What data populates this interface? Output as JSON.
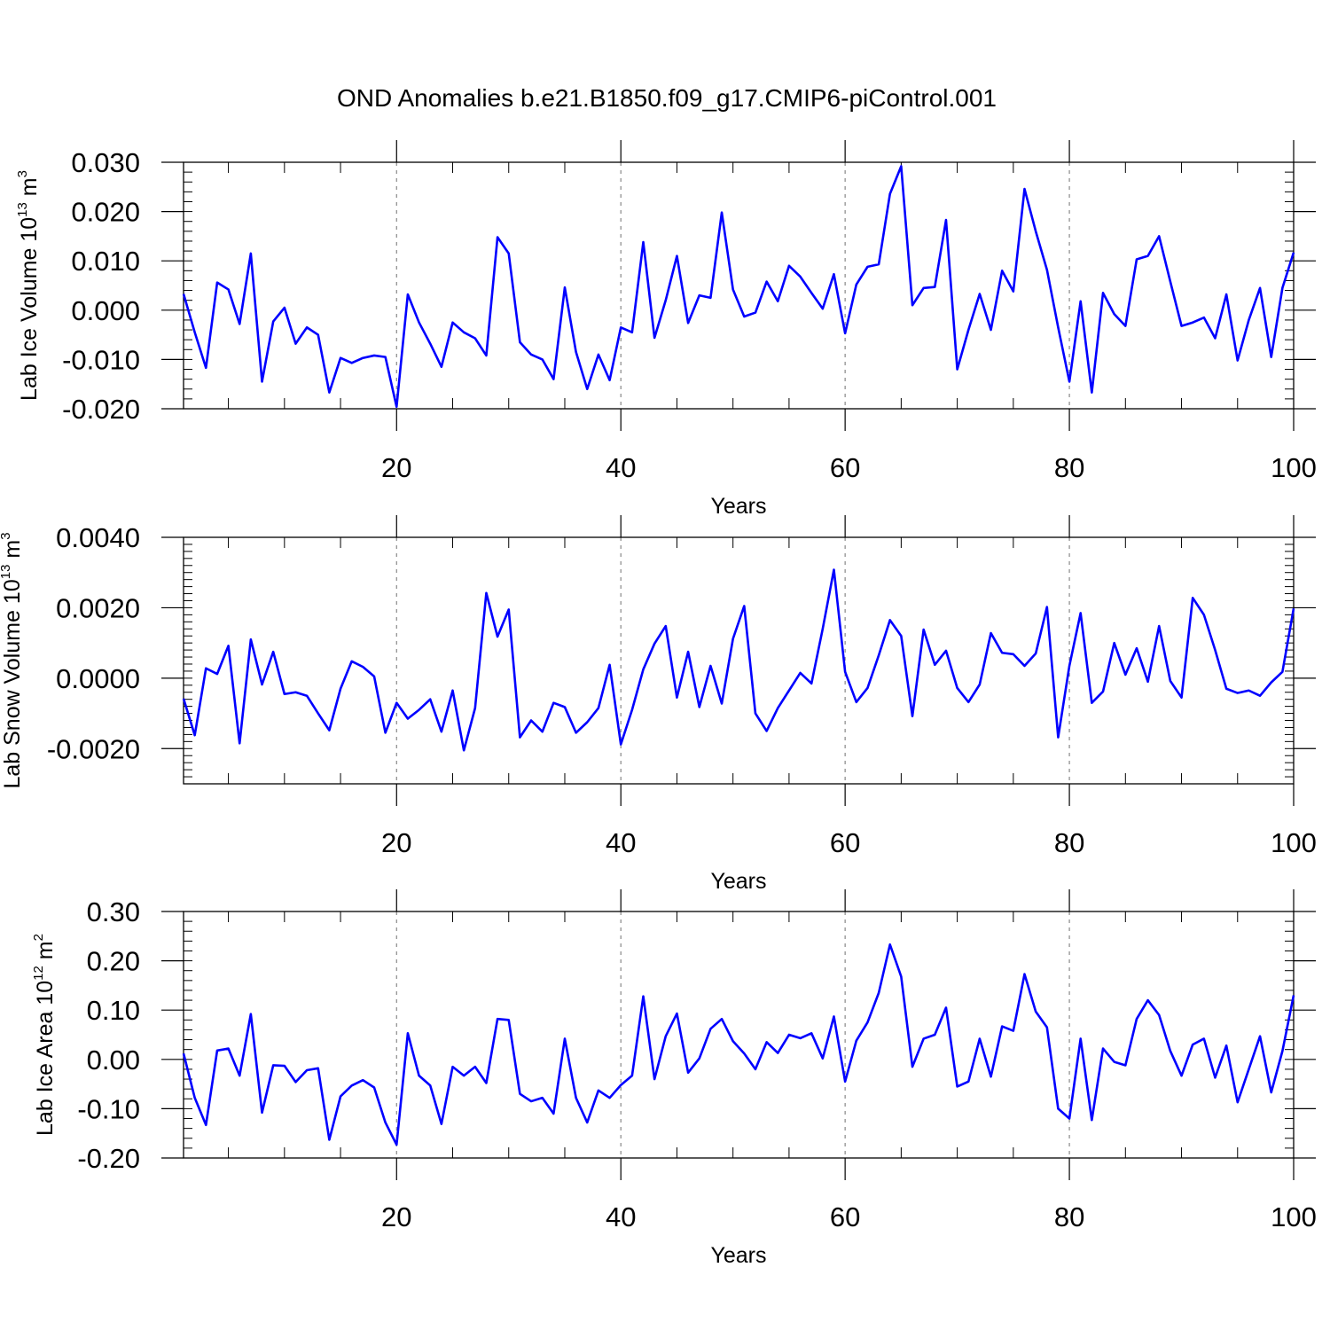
{
  "title": "OND Anomalies b.e21.B1850.f09_g17.CMIP6-piControl.001",
  "colors": {
    "line": "#0000ff",
    "axis": "#000000",
    "grid": "#888888",
    "background": "#ffffff"
  },
  "chart_data": [
    {
      "type": "line",
      "ylabel": {
        "prefix": "Lab Ice Volume 10",
        "exp": "13",
        "unit": " m",
        "unit_exp": "3"
      },
      "xlabel": "Years",
      "xlim": [
        1,
        100
      ],
      "ylim": [
        -0.02,
        0.03
      ],
      "xticks": [
        20,
        40,
        60,
        80,
        100
      ],
      "xtick_labels": [
        "20",
        "40",
        "60",
        "80",
        "100"
      ],
      "yticks": [
        -0.02,
        -0.01,
        0.0,
        0.01,
        0.02,
        0.03
      ],
      "ytick_labels": [
        "-0.020",
        "-0.010",
        "0.000",
        "0.010",
        "0.020",
        "0.030"
      ],
      "yminor_step": 0.002,
      "grid": "dashed vertical at 20, 40, 60, 80",
      "series": [
        {
          "name": "Lab Ice Volume",
          "x_start": 1,
          "values": [
            0.0033,
            -0.0045,
            -0.0117,
            0.0056,
            0.0042,
            -0.0028,
            0.0115,
            -0.0145,
            -0.0023,
            0.0005,
            -0.0068,
            -0.0035,
            -0.005,
            -0.0167,
            -0.0097,
            -0.0107,
            -0.0097,
            -0.0092,
            -0.0095,
            -0.0196,
            0.0032,
            -0.0025,
            -0.0068,
            -0.0115,
            -0.0025,
            -0.0045,
            -0.0057,
            -0.0092,
            0.0148,
            0.0115,
            -0.0065,
            -0.009,
            -0.01,
            -0.014,
            0.0046,
            -0.0085,
            -0.016,
            -0.009,
            -0.0142,
            -0.0035,
            -0.0045,
            0.0138,
            -0.0056,
            0.002,
            0.011,
            -0.0026,
            0.003,
            0.0025,
            0.0198,
            0.0042,
            -0.0013,
            -0.0005,
            0.0058,
            0.0018,
            0.009,
            0.0068,
            0.0035,
            0.0003,
            0.0073,
            -0.0047,
            0.0052,
            0.0088,
            0.0093,
            0.0236,
            0.0292,
            0.001,
            0.0045,
            0.0047,
            0.0183,
            -0.012,
            -0.004,
            0.0033,
            -0.004,
            0.008,
            0.0038,
            0.0246,
            0.016,
            0.0082,
            -0.0035,
            -0.0145,
            0.0018,
            -0.0167,
            0.0035,
            -0.0008,
            -0.0032,
            0.0103,
            0.011,
            0.015,
            0.0058,
            -0.0032,
            -0.0025,
            -0.0015,
            -0.0057,
            0.0032,
            -0.0102,
            -0.002,
            0.0045,
            -0.0095,
            0.0045,
            0.0117
          ]
        }
      ]
    },
    {
      "type": "line",
      "ylabel": {
        "prefix": "Lab Snow Volume 10",
        "exp": "13",
        "unit": " m",
        "unit_exp": "3"
      },
      "xlabel": "Years",
      "xlim": [
        1,
        100
      ],
      "ylim": [
        -0.003,
        0.004
      ],
      "xticks": [
        20,
        40,
        60,
        80,
        100
      ],
      "xtick_labels": [
        "20",
        "40",
        "60",
        "80",
        "100"
      ],
      "yticks": [
        -0.002,
        0.0,
        0.002,
        0.004
      ],
      "ytick_labels": [
        "-0.0020",
        "0.0000",
        "0.0020",
        "0.0040"
      ],
      "yminor_step": 0.0002,
      "grid": "dashed vertical at 20, 40, 60, 80",
      "series": [
        {
          "name": "Lab Snow Volume",
          "x_start": 1,
          "values": [
            -0.00058,
            -0.00162,
            0.00028,
            0.00012,
            0.00092,
            -0.00185,
            0.0011,
            -0.00018,
            0.00075,
            -0.00045,
            -0.0004,
            -0.0005,
            -0.001,
            -0.00148,
            -0.0003,
            0.00048,
            0.00032,
            5e-05,
            -0.00155,
            -0.0007,
            -0.00115,
            -0.0009,
            -0.0006,
            -0.00152,
            -0.00035,
            -0.00205,
            -0.00085,
            0.00242,
            0.00118,
            0.00195,
            -0.00168,
            -0.0012,
            -0.00152,
            -0.0007,
            -0.00082,
            -0.00155,
            -0.00125,
            -0.00085,
            0.00038,
            -0.00188,
            -0.0009,
            0.00025,
            0.00098,
            0.00148,
            -0.00055,
            0.00075,
            -0.00082,
            0.00035,
            -0.00072,
            0.00112,
            0.00205,
            -0.001,
            -0.0015,
            -0.00085,
            -0.00035,
            0.00015,
            -0.00015,
            0.0014,
            0.00308,
            0.00018,
            -0.00068,
            -0.00028,
            0.00065,
            0.00165,
            0.0012,
            -0.00108,
            0.00138,
            0.00038,
            0.00078,
            -0.00028,
            -0.00068,
            -0.00018,
            0.00128,
            0.00072,
            0.00068,
            0.00035,
            0.0007,
            0.00202,
            -0.00168,
            0.00035,
            0.00185,
            -0.0007,
            -0.00038,
            0.001,
            0.0001,
            0.00085,
            -0.0001,
            0.00148,
            -8e-05,
            -0.00055,
            0.00228,
            0.0018,
            0.0008,
            -0.0003,
            -0.00042,
            -0.00035,
            -0.0005,
            -0.00012,
            0.00018,
            0.00198
          ]
        }
      ]
    },
    {
      "type": "line",
      "ylabel": {
        "prefix": "Lab Ice Area 10",
        "exp": "12",
        "unit": " m",
        "unit_exp": "2"
      },
      "xlabel": "Years",
      "xlim": [
        1,
        100
      ],
      "ylim": [
        -0.2,
        0.3
      ],
      "xticks": [
        20,
        40,
        60,
        80,
        100
      ],
      "xtick_labels": [
        "20",
        "40",
        "60",
        "80",
        "100"
      ],
      "yticks": [
        -0.2,
        -0.1,
        0.0,
        0.1,
        0.2,
        0.3
      ],
      "ytick_labels": [
        "-0.20",
        "-0.10",
        "0.00",
        "0.10",
        "0.20",
        "0.30"
      ],
      "yminor_step": 0.02,
      "grid": "dashed vertical at 20, 40, 60, 80",
      "series": [
        {
          "name": "Lab Ice Area",
          "x_start": 1,
          "values": [
            0.012,
            -0.078,
            -0.133,
            0.018,
            0.022,
            -0.033,
            0.092,
            -0.108,
            -0.012,
            -0.013,
            -0.046,
            -0.022,
            -0.018,
            -0.163,
            -0.075,
            -0.053,
            -0.042,
            -0.057,
            -0.128,
            -0.173,
            0.053,
            -0.033,
            -0.053,
            -0.131,
            -0.015,
            -0.033,
            -0.015,
            -0.048,
            0.082,
            0.08,
            -0.07,
            -0.085,
            -0.078,
            -0.11,
            0.042,
            -0.078,
            -0.128,
            -0.063,
            -0.078,
            -0.052,
            -0.033,
            0.128,
            -0.04,
            0.047,
            0.093,
            -0.027,
            0.002,
            0.062,
            0.082,
            0.037,
            0.012,
            -0.02,
            0.035,
            0.013,
            0.05,
            0.043,
            0.053,
            0.002,
            0.087,
            -0.045,
            0.038,
            0.075,
            0.135,
            0.233,
            0.168,
            -0.015,
            0.042,
            0.05,
            0.105,
            -0.055,
            -0.045,
            0.042,
            -0.035,
            0.067,
            0.058,
            0.173,
            0.097,
            0.065,
            -0.1,
            -0.12,
            0.042,
            -0.123,
            0.022,
            -0.005,
            -0.012,
            0.082,
            0.12,
            0.09,
            0.017,
            -0.033,
            0.03,
            0.042,
            -0.037,
            0.028,
            -0.087,
            -0.02,
            0.047,
            -0.067,
            0.017,
            0.13
          ]
        }
      ]
    }
  ]
}
